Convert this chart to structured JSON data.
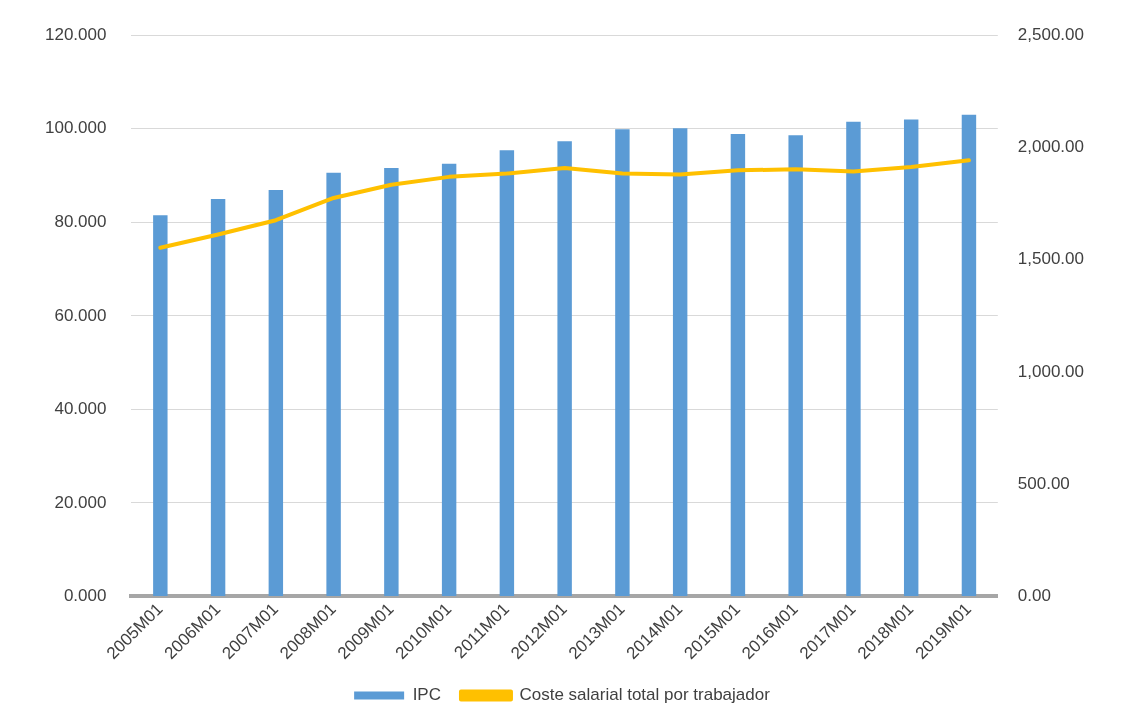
{
  "chart_data": {
    "type": "bar",
    "categories": [
      "2005M01",
      "2006M01",
      "2007M01",
      "2008M01",
      "2009M01",
      "2010M01",
      "2011M01",
      "2012M01",
      "2013M01",
      "2014M01",
      "2015M01",
      "2016M01",
      "2017M01",
      "2018M01",
      "2019M01"
    ],
    "series": [
      {
        "name": "IPC",
        "color": "#5b9bd5",
        "values": [
          81.5,
          85.0,
          86.9,
          90.6,
          91.6,
          92.5,
          95.4,
          97.3,
          99.9,
          100.1,
          98.9,
          98.6,
          101.5,
          102.0,
          103.0
        ]
      },
      {
        "name": "Coste salarial total por trabajador",
        "type": "line",
        "axis": "y2",
        "color": "#ffc000",
        "values": [
          1553,
          1612,
          1676,
          1775,
          1834,
          1869,
          1884,
          1908,
          1884,
          1879,
          1898,
          1903,
          1893,
          1913,
          1943
        ]
      }
    ],
    "ylim": [
      0,
      120
    ],
    "yticks": [
      {
        "value": 0,
        "label": "0.000"
      },
      {
        "value": 20,
        "label": "20.000"
      },
      {
        "value": 40,
        "label": "40.000"
      },
      {
        "value": 60,
        "label": "60.000"
      },
      {
        "value": 80,
        "label": "80.000"
      },
      {
        "value": 100,
        "label": "100.000"
      },
      {
        "value": 120,
        "label": "120.000"
      }
    ],
    "y2lim": [
      0,
      2500
    ],
    "y2ticks": [
      {
        "value": 0,
        "label": "0.00"
      },
      {
        "value": 500,
        "label": "500.00"
      },
      {
        "value": 1000,
        "label": "1,000.00"
      },
      {
        "value": 1500,
        "label": "1,500.00"
      },
      {
        "value": 2000,
        "label": "2,000.00"
      },
      {
        "value": 2500,
        "label": "2,500.00"
      }
    ],
    "grid": "y",
    "legend": "bottom",
    "marker": "none",
    "line_style": "solid"
  }
}
